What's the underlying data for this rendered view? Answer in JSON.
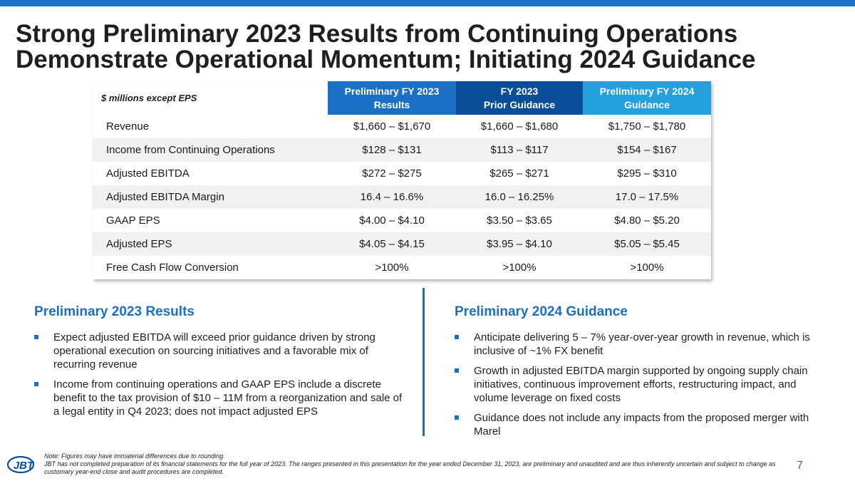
{
  "title": "Strong Preliminary 2023 Results from Continuing Operations Demonstrate Operational Momentum; Initiating 2024 Guidance",
  "table": {
    "unit_label": "$ millions except EPS",
    "headers": [
      {
        "line1": "Preliminary FY 2023",
        "line2": "Results"
      },
      {
        "line1": "FY 2023",
        "line2": "Prior Guidance"
      },
      {
        "line1": "Preliminary FY 2024",
        "line2": "Guidance"
      }
    ],
    "rows": [
      {
        "label": "Revenue",
        "values": [
          "$1,660 – $1,670",
          "$1,660 – $1,680",
          "$1,750 – $1,780"
        ]
      },
      {
        "label": "Income from Continuing Operations",
        "values": [
          "$128 – $131",
          "$113 – $117",
          "$154 – $167"
        ]
      },
      {
        "label": "Adjusted EBITDA",
        "values": [
          "$272 – $275",
          "$265 – $271",
          "$295 – $310"
        ]
      },
      {
        "label": "Adjusted EBITDA Margin",
        "values": [
          "16.4 – 16.6%",
          "16.0 – 16.25%",
          "17.0 – 17.5%"
        ]
      },
      {
        "label": "GAAP EPS",
        "values": [
          "$4.00 – $4.10",
          "$3.50 – $3.65",
          "$4.80 – $5.20"
        ]
      },
      {
        "label": "Adjusted EPS",
        "values": [
          "$4.05 – $4.15",
          "$3.95 – $4.10",
          "$5.05 – $5.45"
        ]
      },
      {
        "label": "Free Cash Flow Conversion",
        "values": [
          ">100%",
          ">100%",
          ">100%"
        ]
      }
    ]
  },
  "left_section": {
    "heading": "Preliminary 2023 Results",
    "bullets": [
      "Expect adjusted EBITDA will exceed prior guidance driven by strong operational execution on sourcing initiatives and a favorable mix of recurring revenue",
      "Income from continuing operations and GAAP EPS include a discrete benefit to the tax provision of $10 – 11M from a reorganization and sale of a legal entity in Q4 2023; does not impact adjusted EPS"
    ]
  },
  "right_section": {
    "heading": "Preliminary 2024 Guidance",
    "bullets": [
      "Anticipate delivering 5 – 7% year-over-year growth in revenue, which is inclusive of ~1% FX benefit",
      "Growth in adjusted EBITDA margin supported by ongoing supply chain initiatives, continuous improvement efforts, restructuring impact, and volume leverage on fixed costs",
      "Guidance does not include any impacts from the proposed merger with Marel"
    ]
  },
  "footer": {
    "logo_text": "JBT",
    "notes": [
      "Note: Figures may have immaterial differences due to rounding.",
      "JBT has not completed preparation of its financial statements for the full year of 2023. The ranges presented in this presentation for the year ended December 31, 2023, are preliminary and unaudited and are thus inherently uncertain and subject to change as customary year-end close and audit procedures are completed."
    ],
    "page_number": "7"
  },
  "colors": {
    "accent_blue": "#1b6fc4",
    "dark_blue": "#0a4e98",
    "light_blue": "#24a0df"
  }
}
